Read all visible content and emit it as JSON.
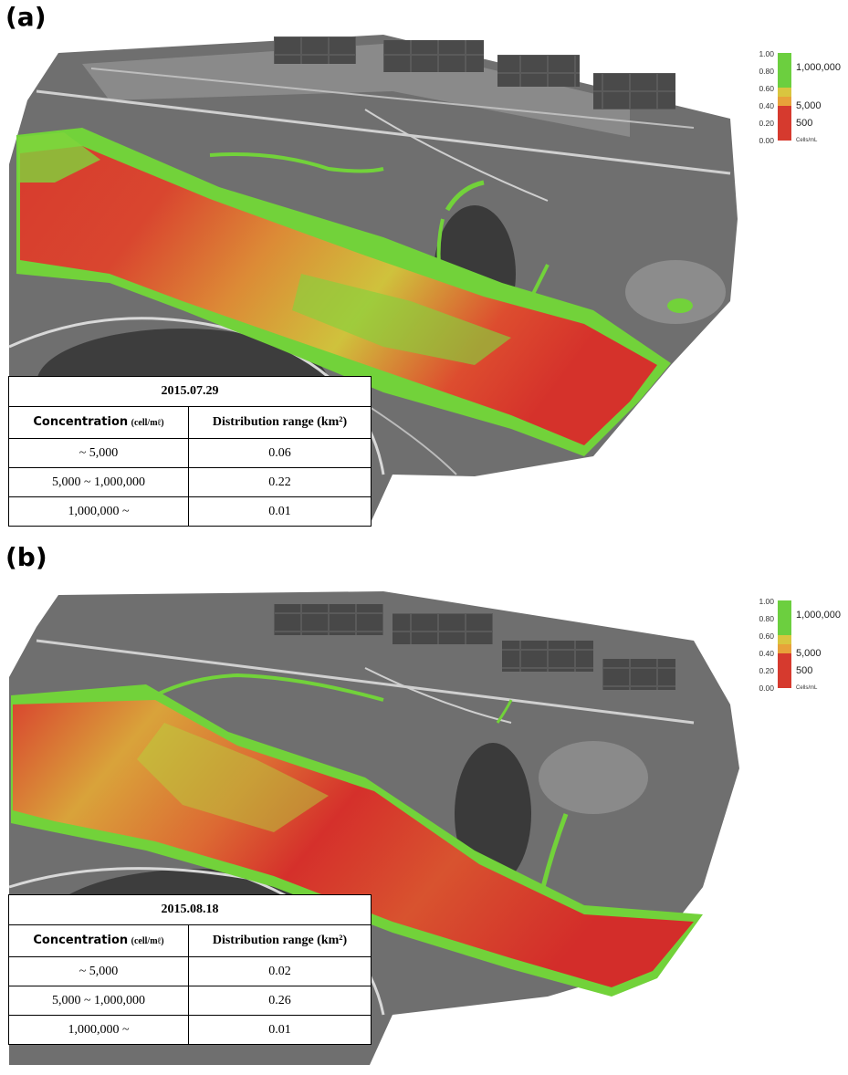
{
  "panels": [
    {
      "letter": "(a)",
      "table": {
        "date": "2015.07.29",
        "header_concentration": "Concentration",
        "header_concentration_unit": "(cell/mℓ)",
        "header_distribution": "Distribution range (km²)",
        "rows": [
          {
            "concentration": "~ 5,000",
            "range": "0.06"
          },
          {
            "concentration": "5,000 ~ 1,000,000",
            "range": "0.22"
          },
          {
            "concentration": "1,000,000 ~",
            "range": "0.01"
          }
        ]
      }
    },
    {
      "letter": "(b)",
      "table": {
        "date": "2015.08.18",
        "header_concentration": "Concentration",
        "header_concentration_unit": "(cell/mℓ)",
        "header_distribution": "Distribution range (km²)",
        "rows": [
          {
            "concentration": "~ 5,000",
            "range": "0.02"
          },
          {
            "concentration": "5,000 ~ 1,000,000",
            "range": "0.26"
          },
          {
            "concentration": "1,000,000 ~",
            "range": "0.01"
          }
        ]
      }
    }
  ],
  "legend": {
    "ticks": [
      "1.00",
      "0.80",
      "0.60",
      "0.40",
      "0.20",
      "0.00"
    ],
    "categories": [
      "1,000,000",
      "5,000",
      "500"
    ],
    "unit": "Cells/mL",
    "colors": {
      "high": "#6ccf3f",
      "mid": "#e8a23a",
      "low": "#d63a2e"
    }
  },
  "map_colors": {
    "land": "#6e6e6e",
    "water_high": "#72d23a",
    "water_mid": "#d7b93a",
    "water_low": "#d5302b"
  }
}
